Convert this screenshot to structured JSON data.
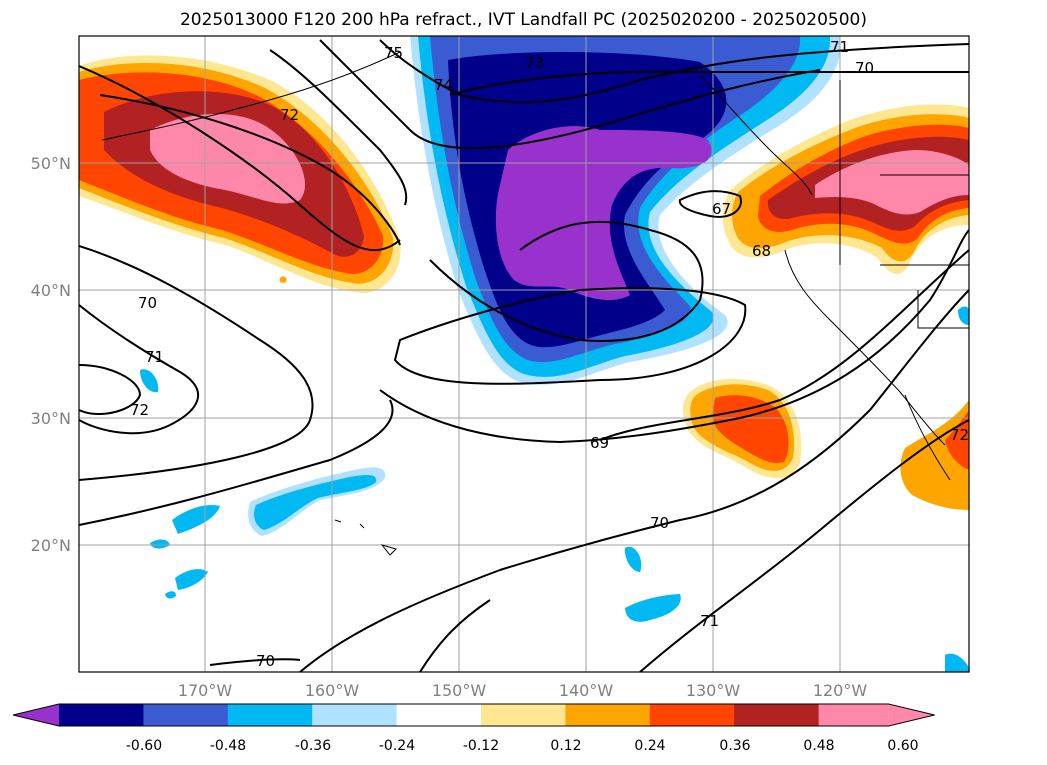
{
  "title": "2025013000 F120 200 hPa refract., IVT Landfall PC (2025020200 - 2025020500)",
  "axes": {
    "lat_ticks": [
      "50°N",
      "40°N",
      "30°N",
      "20°N"
    ],
    "lon_ticks": [
      "170°W",
      "160°W",
      "150°W",
      "140°W",
      "130°W",
      "120°W"
    ]
  },
  "contour_labels": [
    "75",
    "74",
    "73",
    "71",
    "70",
    "72",
    "67",
    "68",
    "70",
    "71",
    "72",
    "69",
    "70",
    "71",
    "70",
    "72"
  ],
  "colorbar": {
    "ticks": [
      "-0.60",
      "-0.48",
      "-0.36",
      "-0.24",
      "-0.12",
      "0.12",
      "0.24",
      "0.36",
      "0.48",
      "0.60"
    ],
    "colors": [
      "#9932cc",
      "#00008b",
      "#3a5bd1",
      "#00b9f2",
      "#b0e2ff",
      "#ffffff",
      "#ffe791",
      "#ffa500",
      "#ff4500",
      "#b22222",
      "#ff88aa"
    ]
  }
}
